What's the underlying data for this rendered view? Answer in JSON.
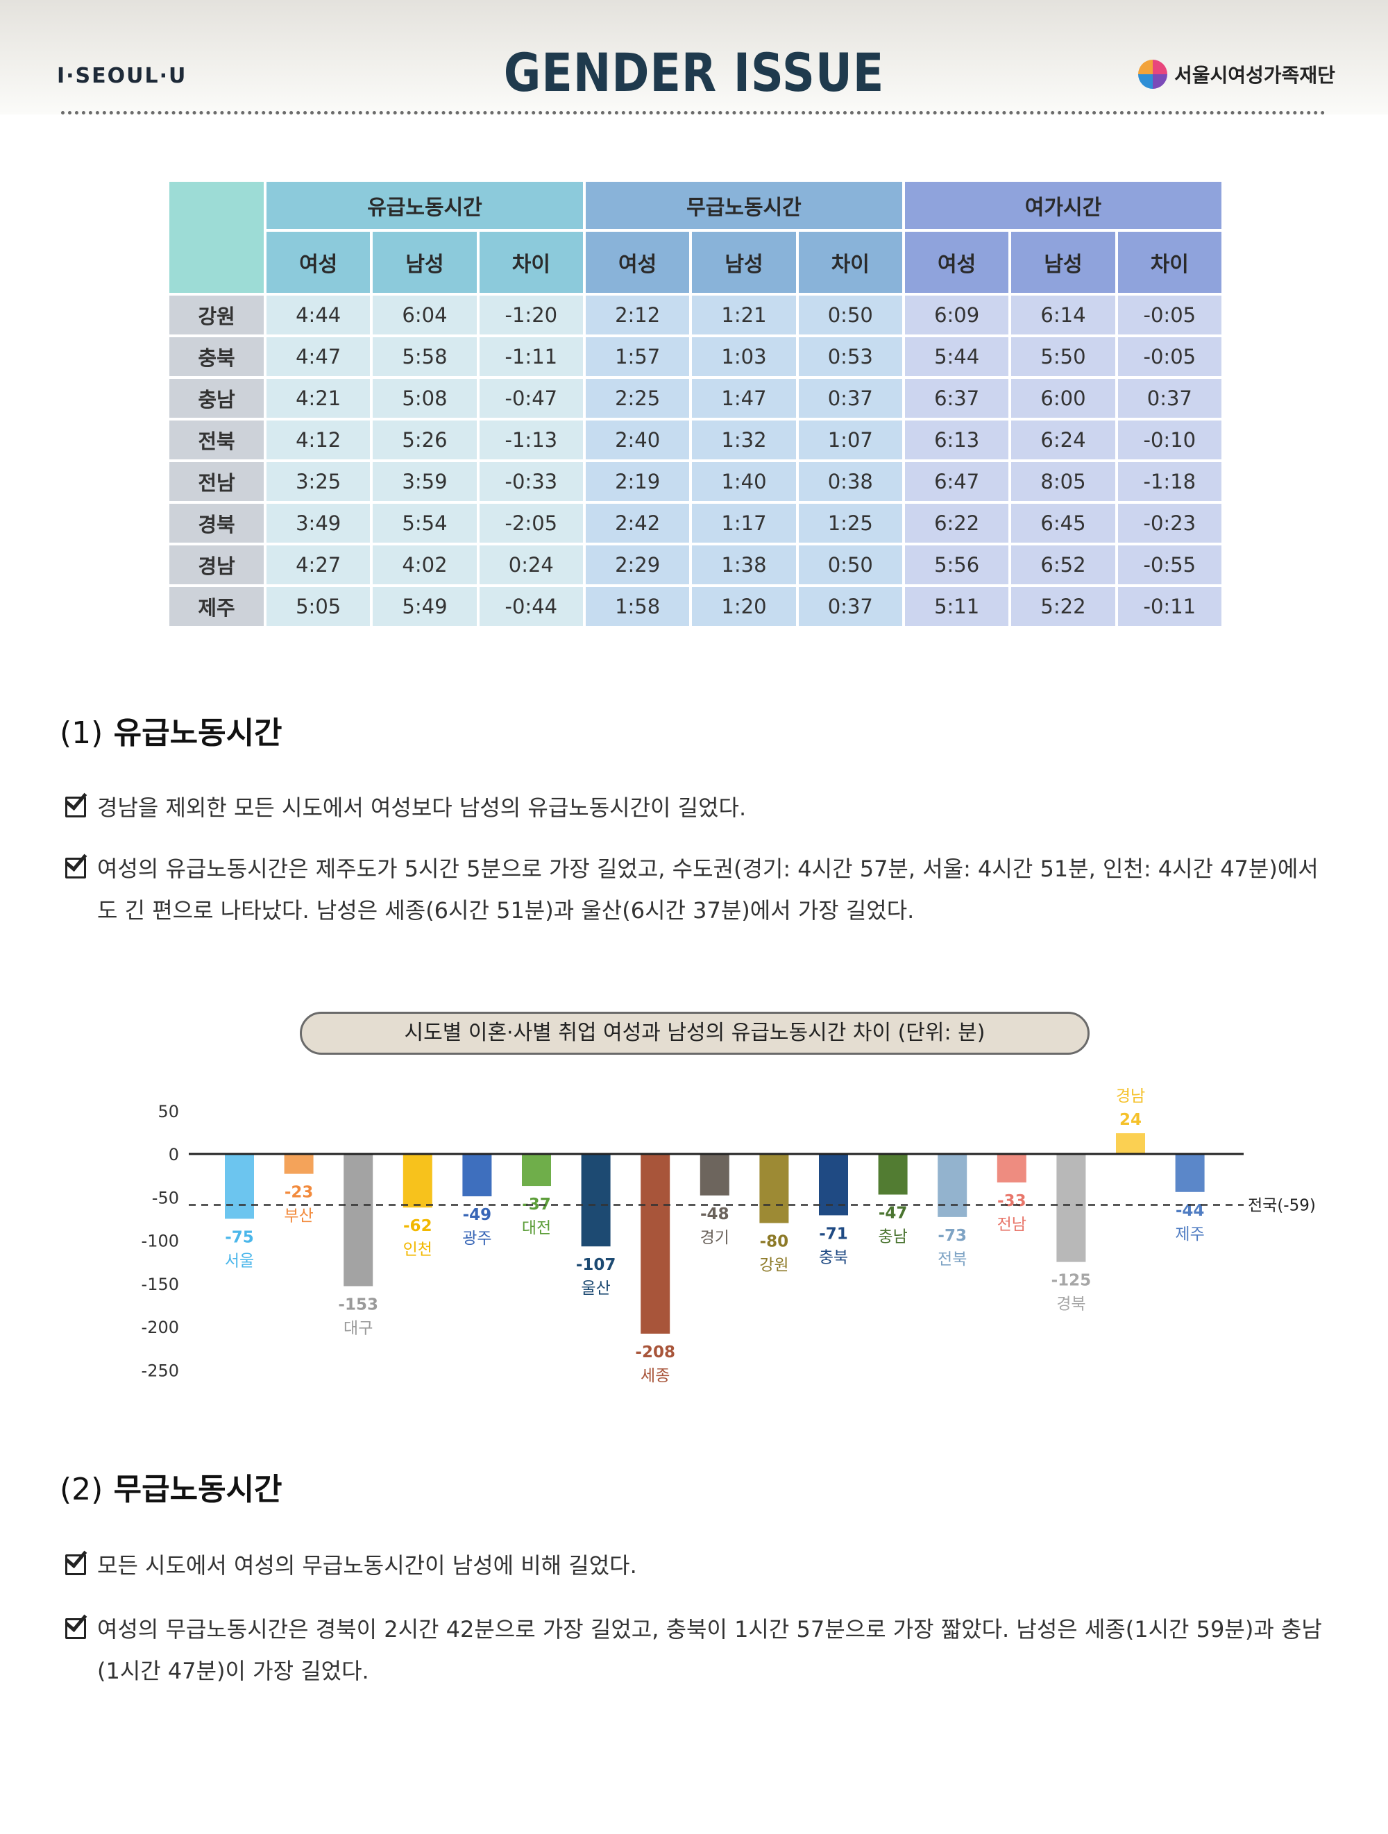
{
  "header": {
    "brand_left": "I·SEOUL·U",
    "title": "GENDER ISSUE",
    "brand_right": "서울시여성가족재단"
  },
  "table": {
    "groups": [
      "유급노동시간",
      "무급노동시간",
      "여가시간"
    ],
    "subheaders": [
      "여성",
      "남성",
      "차이"
    ],
    "rows": [
      {
        "region": "강원",
        "cells": [
          "4:44",
          "6:04",
          "-1:20",
          "2:12",
          "1:21",
          "0:50",
          "6:09",
          "6:14",
          "-0:05"
        ]
      },
      {
        "region": "충북",
        "cells": [
          "4:47",
          "5:58",
          "-1:11",
          "1:57",
          "1:03",
          "0:53",
          "5:44",
          "5:50",
          "-0:05"
        ]
      },
      {
        "region": "충남",
        "cells": [
          "4:21",
          "5:08",
          "-0:47",
          "2:25",
          "1:47",
          "0:37",
          "6:37",
          "6:00",
          "0:37"
        ]
      },
      {
        "region": "전북",
        "cells": [
          "4:12",
          "5:26",
          "-1:13",
          "2:40",
          "1:32",
          "1:07",
          "6:13",
          "6:24",
          "-0:10"
        ]
      },
      {
        "region": "전남",
        "cells": [
          "3:25",
          "3:59",
          "-0:33",
          "2:19",
          "1:40",
          "0:38",
          "6:47",
          "8:05",
          "-1:18"
        ]
      },
      {
        "region": "경북",
        "cells": [
          "3:49",
          "5:54",
          "-2:05",
          "2:42",
          "1:17",
          "1:25",
          "6:22",
          "6:45",
          "-0:23"
        ]
      },
      {
        "region": "경남",
        "cells": [
          "4:27",
          "4:02",
          "0:24",
          "2:29",
          "1:38",
          "0:50",
          "5:56",
          "6:52",
          "-0:55"
        ]
      },
      {
        "region": "제주",
        "cells": [
          "5:05",
          "5:49",
          "-0:44",
          "1:58",
          "1:20",
          "0:37",
          "5:11",
          "5:22",
          "-0:11"
        ]
      }
    ]
  },
  "section1": {
    "num": "(1)",
    "title": "유급노동시간",
    "bullets": [
      "경남을 제외한 모든 시도에서 여성보다 남성의 유급노동시간이 길었다.",
      "여성의 유급노동시간은 제주도가 5시간 5분으로 가장 길었고, 수도권(경기: 4시간 57분, 서울: 4시간 51분, 인천: 4시간 47분)에서도 긴 편으로 나타났다. 남성은 세종(6시간 51분)과 울산(6시간 37분)에서 가장 길었다."
    ]
  },
  "section2": {
    "num": "(2)",
    "title": "무급노동시간",
    "bullets": [
      "모든 시도에서 여성의 무급노동시간이 남성에 비해 길었다.",
      "여성의 무급노동시간은 경북이 2시간 42분으로 가장 길었고, 충북이 1시간 57분으로 가장 짧았다. 남성은 세종(1시간 59분)과 충남(1시간 47분)이 가장 길었다."
    ]
  },
  "chart_data": {
    "type": "bar",
    "title": "시도별 이혼·사별 취업 여성과 남성의 유급노동시간 차이 (단위: 분)",
    "categories": [
      "서울",
      "부산",
      "대구",
      "인천",
      "광주",
      "대전",
      "울산",
      "세종",
      "경기",
      "강원",
      "충북",
      "충남",
      "전북",
      "전남",
      "경북",
      "경남",
      "제주"
    ],
    "values": [
      -75,
      -23,
      -153,
      -62,
      -49,
      -37,
      -107,
      -208,
      -48,
      -80,
      -71,
      -47,
      -73,
      -33,
      -125,
      24,
      -44
    ],
    "colors": [
      "#6cc5ef",
      "#f4a35a",
      "#a3a3a3",
      "#f7c21c",
      "#3e6fbe",
      "#6fae4a",
      "#1d4a72",
      "#a8553a",
      "#6d655d",
      "#9d8a34",
      "#1f4a83",
      "#527c32",
      "#93b3ce",
      "#ee8c80",
      "#b8b8b8",
      "#fbd052",
      "#5b87c9"
    ],
    "label_colors": [
      "#4ab6ea",
      "#f28a3c",
      "#9a9a9a",
      "#f2b800",
      "#3765b6",
      "#5d9e3a",
      "#1d4a72",
      "#a8553a",
      "#6a625b",
      "#8d7a28",
      "#1f4a83",
      "#4a7430",
      "#7ea3c4",
      "#e8766a",
      "#a6a6a6",
      "#f5c12a",
      "#4f7cc2"
    ],
    "yticks": [
      50,
      0,
      -50,
      -100,
      -150,
      -200,
      -250
    ],
    "ylim": [
      -250,
      50
    ],
    "reference_line": {
      "value": -59,
      "label": "전국(-59)"
    }
  }
}
